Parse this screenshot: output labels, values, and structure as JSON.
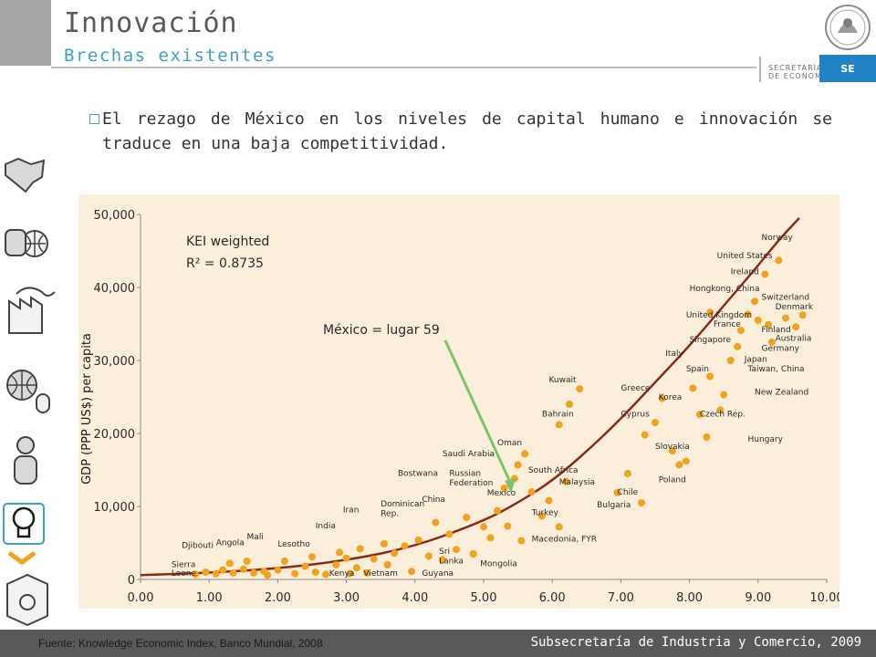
{
  "header": {
    "title": "Innovación",
    "subtitle": "Brechas existentes",
    "agency_line1": "SECRETARÍA",
    "agency_line2": "DE ECONOMÍA",
    "badge": "SE"
  },
  "bullet_text": "El rezago de México en los niveles de capital humano e innovación se traduce en una baja competitividad.",
  "sidebar_icons": [
    "map-icon",
    "handshake-globe-icon",
    "factory-icon",
    "globe-mouse-icon",
    "person-icon",
    "lightbulb-icon",
    "chevron-icon",
    "recycle-box-icon"
  ],
  "colors": {
    "accent": "#3aa0c8",
    "panel": "#fbeeda",
    "curve": "#8a2a16",
    "points": "#f2a21c",
    "arrow": "#7cc46a",
    "footer": "#595959",
    "badge": "#1f83c4"
  },
  "chart_data": {
    "type": "scatter",
    "ylabel": "GDP (PPP US$) per capita",
    "xlabel": "",
    "x_tick_labels": [
      "0.00",
      "1.00",
      "2.00",
      "3.00",
      "4.00",
      "5.00",
      "6.00",
      "7.00",
      "8.00",
      "9.00",
      "10.00"
    ],
    "y_tick_labels": [
      "0",
      "10,000",
      "20,000",
      "30,000",
      "40,000",
      "50,000"
    ],
    "xlim": [
      0,
      10
    ],
    "ylim": [
      0,
      50000
    ],
    "annotation_lines": [
      "KEI weighted",
      "R² = 0.8735"
    ],
    "highlight_label": "México = lugar 59",
    "highlight_target": {
      "x": 5.4,
      "y": 11800
    },
    "trend_curve": [
      [
        0.0,
        600
      ],
      [
        1.0,
        900
      ],
      [
        2.0,
        1500
      ],
      [
        3.0,
        2600
      ],
      [
        4.0,
        4500
      ],
      [
        5.0,
        8000
      ],
      [
        5.5,
        10500
      ],
      [
        6.0,
        13500
      ],
      [
        6.5,
        17500
      ],
      [
        7.0,
        22000
      ],
      [
        7.5,
        27000
      ],
      [
        8.0,
        32000
      ],
      [
        8.5,
        37500
      ],
      [
        9.0,
        43000
      ],
      [
        9.3,
        46500
      ],
      [
        9.6,
        49500
      ]
    ],
    "points": [
      {
        "x": 0.8,
        "y": 700
      },
      {
        "x": 0.95,
        "y": 1000
      },
      {
        "x": 1.1,
        "y": 800
      },
      {
        "x": 1.2,
        "y": 1300
      },
      {
        "x": 1.3,
        "y": 2200
      },
      {
        "x": 1.35,
        "y": 900
      },
      {
        "x": 1.5,
        "y": 1400
      },
      {
        "x": 1.55,
        "y": 2500
      },
      {
        "x": 1.65,
        "y": 900
      },
      {
        "x": 1.8,
        "y": 1100
      },
      {
        "x": 1.85,
        "y": 600
      },
      {
        "x": 2.0,
        "y": 1300
      },
      {
        "x": 2.1,
        "y": 2500
      },
      {
        "x": 2.25,
        "y": 800
      },
      {
        "x": 2.4,
        "y": 1800
      },
      {
        "x": 2.5,
        "y": 3100
      },
      {
        "x": 2.55,
        "y": 1000
      },
      {
        "x": 2.7,
        "y": 700
      },
      {
        "x": 2.85,
        "y": 2000
      },
      {
        "x": 2.9,
        "y": 3700
      },
      {
        "x": 3.0,
        "y": 2900
      },
      {
        "x": 3.05,
        "y": 800
      },
      {
        "x": 3.15,
        "y": 1600
      },
      {
        "x": 3.2,
        "y": 4200
      },
      {
        "x": 3.3,
        "y": 900
      },
      {
        "x": 3.4,
        "y": 2800
      },
      {
        "x": 3.55,
        "y": 4900
      },
      {
        "x": 3.6,
        "y": 2000
      },
      {
        "x": 3.7,
        "y": 3600
      },
      {
        "x": 3.85,
        "y": 4600
      },
      {
        "x": 3.95,
        "y": 1100
      },
      {
        "x": 4.05,
        "y": 5400
      },
      {
        "x": 4.2,
        "y": 3200
      },
      {
        "x": 4.3,
        "y": 7800
      },
      {
        "x": 4.4,
        "y": 2700
      },
      {
        "x": 4.5,
        "y": 6200
      },
      {
        "x": 4.6,
        "y": 4100
      },
      {
        "x": 4.75,
        "y": 8500
      },
      {
        "x": 4.85,
        "y": 3500
      },
      {
        "x": 5.0,
        "y": 7200
      },
      {
        "x": 5.1,
        "y": 5700
      },
      {
        "x": 5.2,
        "y": 9400
      },
      {
        "x": 5.3,
        "y": 12500
      },
      {
        "x": 5.35,
        "y": 7300
      },
      {
        "x": 5.45,
        "y": 13800
      },
      {
        "x": 5.5,
        "y": 15700
      },
      {
        "x": 5.55,
        "y": 5300
      },
      {
        "x": 5.6,
        "y": 17200
      },
      {
        "x": 5.7,
        "y": 12000
      },
      {
        "x": 5.85,
        "y": 8700
      },
      {
        "x": 5.95,
        "y": 10800
      },
      {
        "x": 6.1,
        "y": 7200
      },
      {
        "x": 6.2,
        "y": 13400
      },
      {
        "x": 6.25,
        "y": 24000
      },
      {
        "x": 6.4,
        "y": 26100
      },
      {
        "x": 6.1,
        "y": 21200
      },
      {
        "x": 6.95,
        "y": 11900
      },
      {
        "x": 7.1,
        "y": 14500
      },
      {
        "x": 7.3,
        "y": 10500
      },
      {
        "x": 7.5,
        "y": 21500
      },
      {
        "x": 7.6,
        "y": 24800
      },
      {
        "x": 7.75,
        "y": 17600
      },
      {
        "x": 7.85,
        "y": 15700
      },
      {
        "x": 7.95,
        "y": 16200
      },
      {
        "x": 8.05,
        "y": 26200
      },
      {
        "x": 8.15,
        "y": 22600
      },
      {
        "x": 8.25,
        "y": 19500
      },
      {
        "x": 8.3,
        "y": 27800
      },
      {
        "x": 8.45,
        "y": 23200
      },
      {
        "x": 8.5,
        "y": 25300
      },
      {
        "x": 8.6,
        "y": 30000
      },
      {
        "x": 8.7,
        "y": 31900
      },
      {
        "x": 8.75,
        "y": 34100
      },
      {
        "x": 8.85,
        "y": 36300
      },
      {
        "x": 8.95,
        "y": 38100
      },
      {
        "x": 9.0,
        "y": 35500
      },
      {
        "x": 9.1,
        "y": 41800
      },
      {
        "x": 9.15,
        "y": 34900
      },
      {
        "x": 9.3,
        "y": 43700
      },
      {
        "x": 9.4,
        "y": 35800
      },
      {
        "x": 9.55,
        "y": 34600
      },
      {
        "x": 9.65,
        "y": 36200
      },
      {
        "x": 9.2,
        "y": 32500
      },
      {
        "x": 8.3,
        "y": 36600
      },
      {
        "x": 7.35,
        "y": 19800
      }
    ],
    "labels": [
      {
        "text": "Norway",
        "x": 9.05,
        "y": 46500
      },
      {
        "text": "United States",
        "x": 8.4,
        "y": 44000
      },
      {
        "text": "Ireland",
        "x": 8.6,
        "y": 41800
      },
      {
        "text": "Hongkong, China",
        "x": 8.0,
        "y": 39500
      },
      {
        "text": "Switzerland",
        "x": 9.05,
        "y": 38300
      },
      {
        "text": "Denmark",
        "x": 9.25,
        "y": 37000
      },
      {
        "text": "United Kingdom",
        "x": 7.95,
        "y": 35900
      },
      {
        "text": "France",
        "x": 8.35,
        "y": 34600
      },
      {
        "text": "Finland",
        "x": 9.05,
        "y": 33900
      },
      {
        "text": "Australia",
        "x": 9.25,
        "y": 32700
      },
      {
        "text": "Singapore",
        "x": 8.0,
        "y": 32500
      },
      {
        "text": "Germany",
        "x": 9.05,
        "y": 31300
      },
      {
        "text": "Italy",
        "x": 7.65,
        "y": 30600
      },
      {
        "text": "Japan",
        "x": 8.8,
        "y": 29800
      },
      {
        "text": "Spain",
        "x": 7.95,
        "y": 28500
      },
      {
        "text": "Taiwan, China",
        "x": 8.85,
        "y": 28500
      },
      {
        "text": "Kuwait",
        "x": 5.95,
        "y": 27000
      },
      {
        "text": "Greece",
        "x": 7.0,
        "y": 25900
      },
      {
        "text": "New Zealand",
        "x": 8.95,
        "y": 25300
      },
      {
        "text": "Korea",
        "x": 7.55,
        "y": 24600
      },
      {
        "text": "Bahrain",
        "x": 5.85,
        "y": 22300
      },
      {
        "text": "Cyprus",
        "x": 7.0,
        "y": 22300
      },
      {
        "text": "Czech Rep.",
        "x": 8.15,
        "y": 22300
      },
      {
        "text": "Hungary",
        "x": 8.85,
        "y": 18900
      },
      {
        "text": "Slovakia",
        "x": 7.5,
        "y": 17900
      },
      {
        "text": "Oman",
        "x": 5.2,
        "y": 18400
      },
      {
        "text": "Saudi Arabia",
        "x": 4.4,
        "y": 16900
      },
      {
        "text": "South Africa",
        "x": 5.65,
        "y": 14600
      },
      {
        "text": "Bostwana",
        "x": 3.75,
        "y": 14200
      },
      {
        "text": "Russian",
        "x": 4.5,
        "y": 14200
      },
      {
        "text": "Federation",
        "x": 4.5,
        "y": 12900
      },
      {
        "text": "Malaysia",
        "x": 6.1,
        "y": 13000
      },
      {
        "text": "Poland",
        "x": 7.55,
        "y": 13300
      },
      {
        "text": "Mexico",
        "x": 5.05,
        "y": 11500
      },
      {
        "text": "China",
        "x": 4.1,
        "y": 10600
      },
      {
        "text": "Chile",
        "x": 6.95,
        "y": 11600
      },
      {
        "text": "Dominican",
        "x": 3.5,
        "y": 10000
      },
      {
        "text": "Rep.",
        "x": 3.5,
        "y": 8700
      },
      {
        "text": "Iran",
        "x": 2.95,
        "y": 9200
      },
      {
        "text": "Bulgaria",
        "x": 6.65,
        "y": 9900
      },
      {
        "text": "Turkey",
        "x": 5.7,
        "y": 8800
      },
      {
        "text": "India",
        "x": 2.55,
        "y": 7000
      },
      {
        "text": "Mali",
        "x": 1.55,
        "y": 5500
      },
      {
        "text": "Angola",
        "x": 1.1,
        "y": 4700
      },
      {
        "text": "Lesotho",
        "x": 2.0,
        "y": 4500
      },
      {
        "text": "Djibouti",
        "x": 0.6,
        "y": 4300
      },
      {
        "text": "Macedonia, FYR",
        "x": 5.7,
        "y": 5200
      },
      {
        "text": "Sri",
        "x": 4.35,
        "y": 3500
      },
      {
        "text": "Lanka",
        "x": 4.35,
        "y": 2200
      },
      {
        "text": "Mongolia",
        "x": 4.95,
        "y": 1800
      },
      {
        "text": "Sierra",
        "x": 0.45,
        "y": 1700
      },
      {
        "text": "Leone",
        "x": 0.45,
        "y": 500
      },
      {
        "text": "Kenya",
        "x": 2.75,
        "y": 500
      },
      {
        "text": "Vietnam",
        "x": 3.25,
        "y": 500
      },
      {
        "text": "Guyana",
        "x": 4.1,
        "y": 500
      }
    ]
  },
  "footer": {
    "source": "Fuente: Knowledge Economic Index, Banco Mundial, 2008",
    "department": "Subsecretaría de Industria y Comercio, 2009"
  }
}
